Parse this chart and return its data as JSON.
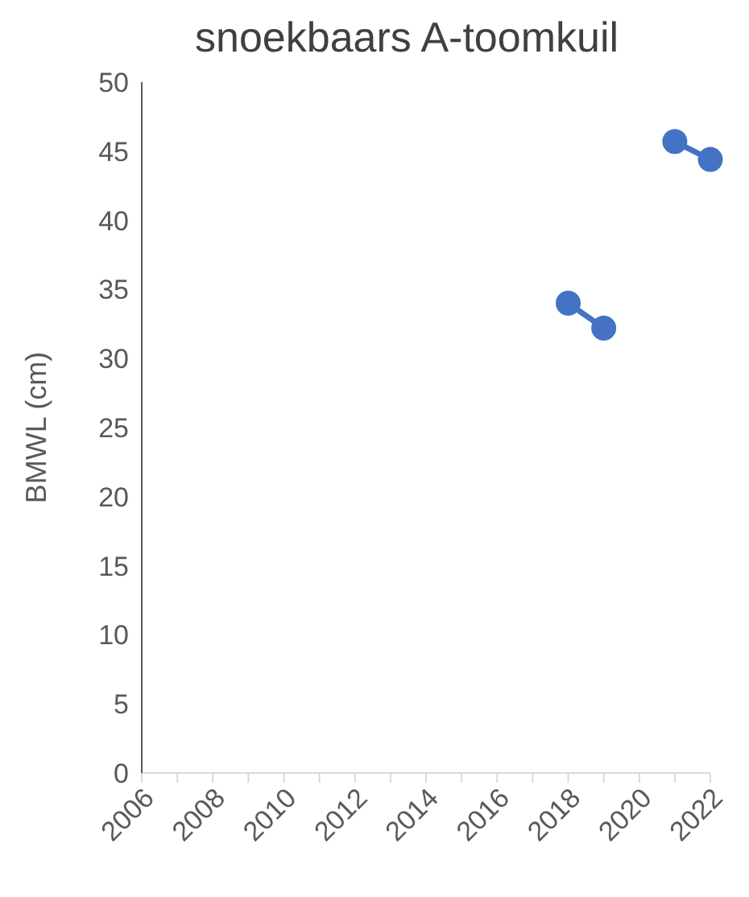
{
  "chart_data": {
    "type": "line",
    "title": "snoekbaars A-toomkuil",
    "ylabel": "BMWL (cm)",
    "categories": [
      "2006",
      null,
      "2008",
      null,
      "2010",
      null,
      "2012",
      null,
      "2014",
      null,
      "2016",
      null,
      "2018",
      null,
      "2020",
      null,
      "2022"
    ],
    "series": [
      {
        "color": "#4472c4",
        "values": [
          null,
          null,
          null,
          null,
          null,
          null,
          null,
          null,
          null,
          null,
          null,
          null,
          34.0,
          32.2,
          null,
          45.7,
          44.4
        ]
      }
    ],
    "ylim": [
      0,
      50
    ],
    "yticks": [
      0,
      5,
      10,
      15,
      20,
      25,
      30,
      35,
      40,
      45,
      50
    ],
    "grid": false,
    "legend": false,
    "marker": "circle",
    "line_style": "solid"
  }
}
